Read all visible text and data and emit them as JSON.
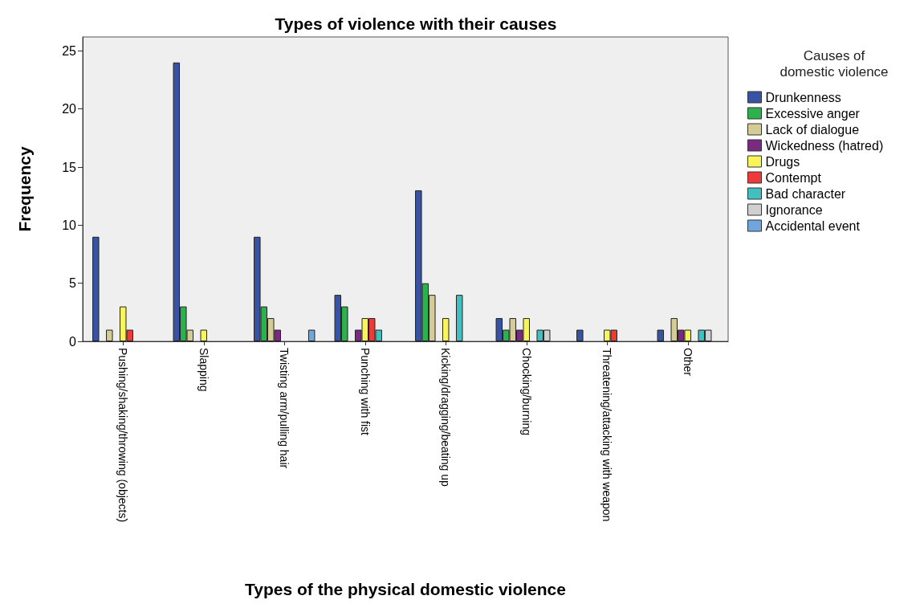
{
  "chart_data": {
    "type": "bar",
    "title": "Types of violence with their causes",
    "xlabel": "Types of the physical domestic violence",
    "ylabel": "Frequency",
    "legend_title": "Causes of\ndomestic violence",
    "categories": [
      "Pushing/shaking/throwing (objects)",
      "Slapping",
      "Twisting arm/pulling hair",
      "Punching with fist",
      "Kicking/dragging/beating up",
      "Chocking/burning",
      "Threatening/attacking with weapon",
      "Other"
    ],
    "series": [
      {
        "name": "Drunkenness",
        "color": "#3953a4",
        "values": [
          9,
          24,
          9,
          4,
          13,
          2,
          1,
          1
        ]
      },
      {
        "name": "Excessive anger",
        "color": "#2bb24c",
        "values": [
          null,
          3,
          3,
          3,
          5,
          1,
          null,
          null
        ]
      },
      {
        "name": "Lack of dialogue",
        "color": "#d4cc94",
        "values": [
          1,
          1,
          2,
          null,
          4,
          2,
          null,
          2
        ]
      },
      {
        "name": "Wickedness (hatred)",
        "color": "#7a2a82",
        "values": [
          null,
          null,
          1,
          1,
          null,
          1,
          null,
          1
        ]
      },
      {
        "name": "Drugs",
        "color": "#f7f55a",
        "values": [
          3,
          1,
          null,
          2,
          2,
          2,
          1,
          1
        ]
      },
      {
        "name": "Contempt",
        "color": "#ee3a38",
        "values": [
          1,
          null,
          null,
          2,
          null,
          null,
          1,
          null
        ]
      },
      {
        "name": "Bad character",
        "color": "#42c0c0",
        "values": [
          null,
          null,
          null,
          1,
          4,
          1,
          null,
          1
        ]
      },
      {
        "name": "Ignorance",
        "color": "#d0d0d0",
        "values": [
          null,
          null,
          null,
          null,
          null,
          1,
          null,
          1
        ]
      },
      {
        "name": "Accidental event",
        "color": "#6fa6dc",
        "values": [
          null,
          null,
          1,
          null,
          null,
          null,
          null,
          null
        ]
      }
    ],
    "ylim": [
      0,
      26.2
    ],
    "yticks": [
      0,
      5,
      10,
      15,
      20,
      25
    ],
    "grid": false,
    "legend": "right"
  }
}
